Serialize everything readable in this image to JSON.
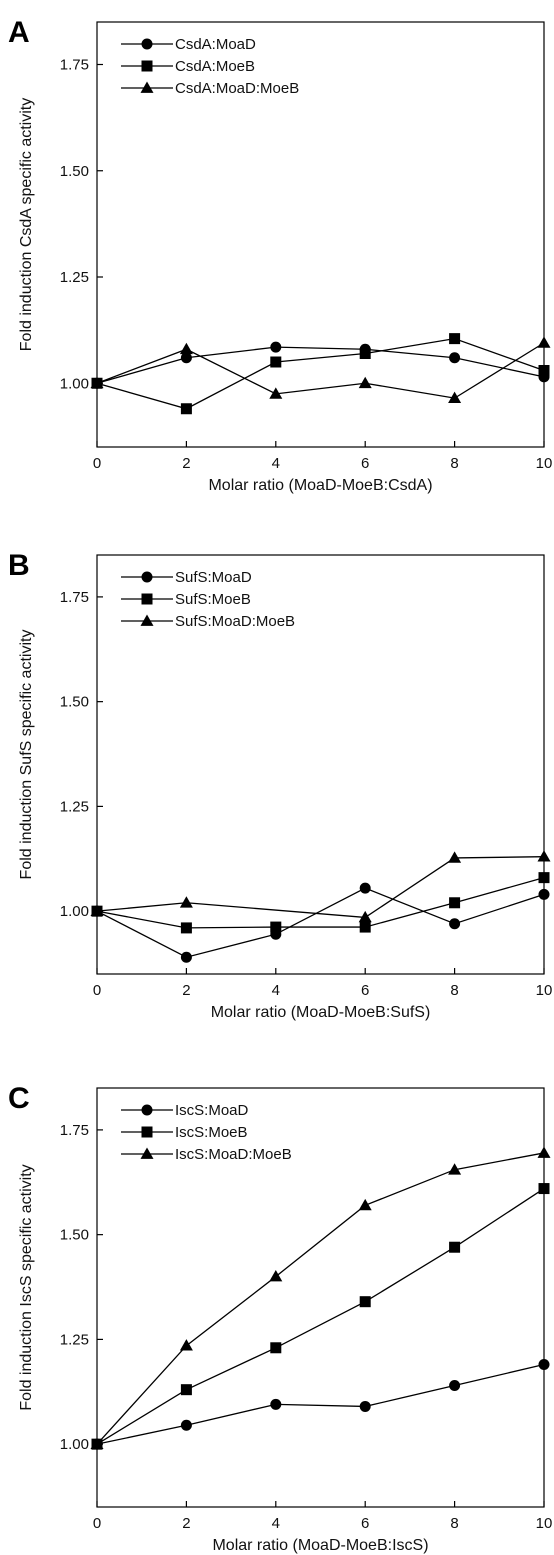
{
  "chart_data": [
    {
      "panel": "A",
      "type": "line",
      "xlabel": "Molar ratio (MoaD-MoeB:CsdA)",
      "ylabel": "Fold induction CsdA specific activity",
      "xlim": [
        0,
        10
      ],
      "ylim": [
        0.85,
        1.85
      ],
      "xticks": [
        0,
        2,
        4,
        6,
        8,
        10
      ],
      "yticks": [
        1.0,
        1.25,
        1.5,
        1.75
      ],
      "ytick_labels": [
        "1.00",
        "1.25",
        "1.50",
        "1.75"
      ],
      "grid": false,
      "legend_position": "top-left",
      "x": [
        0,
        2,
        4,
        6,
        8,
        10
      ],
      "series": [
        {
          "name": "CsdA:MoaD",
          "marker": "circle",
          "values": [
            1.0,
            1.06,
            1.085,
            1.08,
            1.06,
            1.015
          ]
        },
        {
          "name": "CsdA:MoeB",
          "marker": "square",
          "values": [
            1.0,
            0.94,
            1.05,
            1.07,
            1.105,
            1.03
          ]
        },
        {
          "name": "CsdA:MoaD:MoeB",
          "marker": "triangle",
          "values": [
            1.0,
            1.08,
            0.975,
            1.0,
            0.965,
            1.095
          ]
        }
      ]
    },
    {
      "panel": "B",
      "type": "line",
      "xlabel": "Molar ratio (MoaD-MoeB:SufS)",
      "ylabel": "Fold induction SufS specific activity",
      "xlim": [
        0,
        10
      ],
      "ylim": [
        0.85,
        1.85
      ],
      "xticks": [
        0,
        2,
        4,
        6,
        8,
        10
      ],
      "yticks": [
        1.0,
        1.25,
        1.5,
        1.75
      ],
      "ytick_labels": [
        "1.00",
        "1.25",
        "1.50",
        "1.75"
      ],
      "grid": false,
      "legend_position": "top-left",
      "x": [
        0,
        2,
        4,
        6,
        8,
        10
      ],
      "series": [
        {
          "name": "SufS:MoaD",
          "marker": "circle",
          "values": [
            1.0,
            0.89,
            0.945,
            1.055,
            0.97,
            1.04
          ]
        },
        {
          "name": "SufS:MoeB",
          "marker": "square",
          "values": [
            1.0,
            0.96,
            0.962,
            0.962,
            1.02,
            1.08
          ]
        },
        {
          "name": "SufS:MoaD:MoeB",
          "marker": "triangle",
          "values": [
            1.0,
            1.02,
            null,
            0.985,
            1.127,
            1.13
          ]
        }
      ]
    },
    {
      "panel": "C",
      "type": "line",
      "xlabel": "Molar ratio (MoaD-MoeB:IscS)",
      "ylabel": "Fold induction IscS specific activity",
      "xlim": [
        0,
        10
      ],
      "ylim": [
        0.85,
        1.85
      ],
      "xticks": [
        0,
        2,
        4,
        6,
        8,
        10
      ],
      "yticks": [
        1.0,
        1.25,
        1.5,
        1.75
      ],
      "ytick_labels": [
        "1.00",
        "1.25",
        "1.50",
        "1.75"
      ],
      "grid": false,
      "legend_position": "top-left",
      "x": [
        0,
        2,
        4,
        6,
        8,
        10
      ],
      "series": [
        {
          "name": "IscS:MoaD",
          "marker": "circle",
          "values": [
            1.0,
            1.045,
            1.095,
            1.09,
            1.14,
            1.19
          ]
        },
        {
          "name": "IscS:MoeB",
          "marker": "square",
          "values": [
            1.0,
            1.13,
            1.23,
            1.34,
            1.47,
            1.61
          ]
        },
        {
          "name": "IscS:MoaD:MoeB",
          "marker": "triangle",
          "values": [
            1.0,
            1.235,
            1.4,
            1.57,
            1.655,
            1.695
          ]
        }
      ]
    }
  ]
}
